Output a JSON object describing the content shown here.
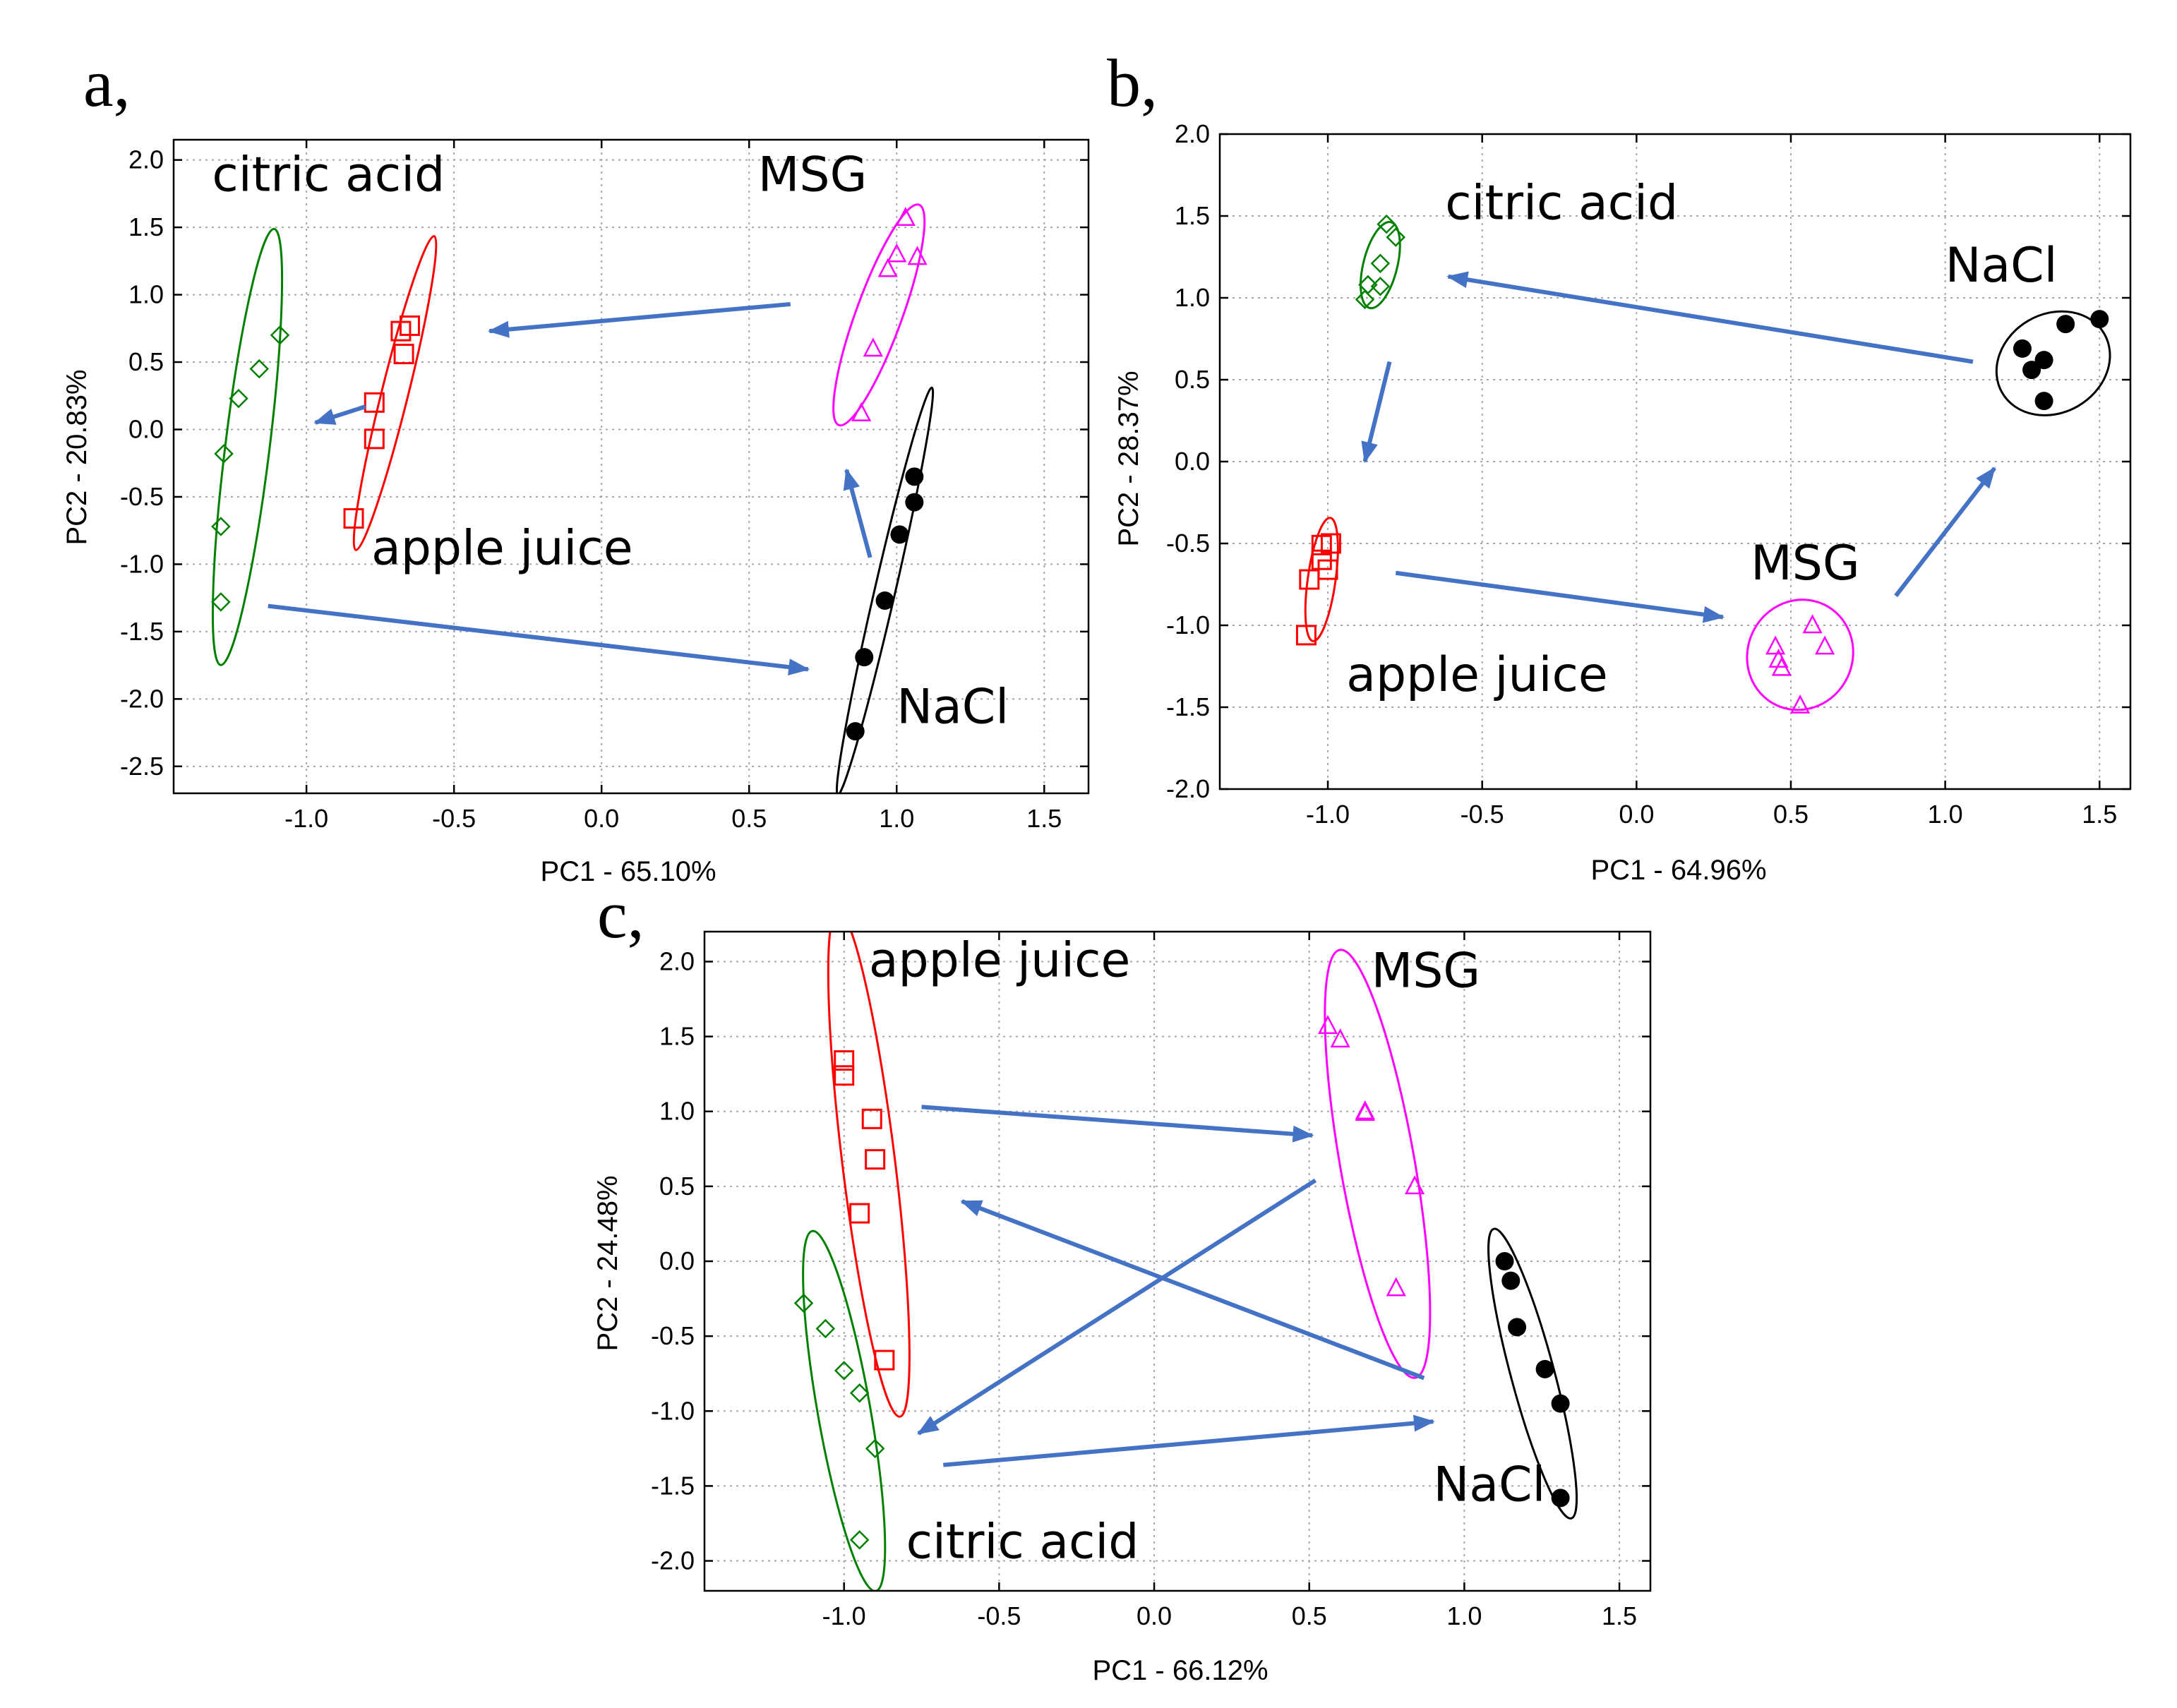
{
  "colors": {
    "citric acid": "#008000",
    "apple juice": "#ff0000",
    "MSG": "#ff00ff",
    "NaCl": "#000000",
    "arrow": "#4472c4"
  },
  "chart_data": [
    {
      "type": "scatter",
      "panel": "a,",
      "xlabel": "PC1 - 65.10%",
      "ylabel": "PC2 - 20.83%",
      "xlim": [
        -1.45,
        1.65
      ],
      "ylim": [
        -2.7,
        2.15
      ],
      "xticks": [
        -1.0,
        -0.5,
        0.0,
        0.5,
        1.0,
        1.5
      ],
      "xtick_labels": [
        "-1.0",
        "-0.5",
        "0.0",
        "0.5",
        "1.0",
        "1.5"
      ],
      "yticks": [
        2.0,
        1.5,
        1.0,
        0.5,
        0.0,
        -0.5,
        -1.0,
        -1.5,
        -2.0,
        -2.5
      ],
      "ytick_labels": [
        "2.0",
        "1.5",
        "1.0",
        "0.5",
        "0.0",
        "-0.5",
        "-1.0",
        "-1.5",
        "-2.0",
        "-2.5"
      ],
      "series": [
        {
          "name": "citric acid",
          "marker": "diamond",
          "points": [
            [
              -1.09,
              0.7
            ],
            [
              -1.16,
              0.45
            ],
            [
              -1.23,
              0.23
            ],
            [
              -1.28,
              -0.18
            ],
            [
              -1.29,
              -0.72
            ],
            [
              -1.29,
              -1.28
            ]
          ],
          "ellipse": {
            "center": [
              -1.2,
              -0.13
            ],
            "rx": 0.075,
            "ry": 1.63,
            "angle_deg": 7
          }
        },
        {
          "name": "apple juice",
          "marker": "square",
          "points": [
            [
              -0.65,
              0.77
            ],
            [
              -0.68,
              0.73
            ],
            [
              -0.67,
              0.56
            ],
            [
              -0.77,
              0.2
            ],
            [
              -0.77,
              -0.07
            ],
            [
              -0.84,
              -0.66
            ]
          ],
          "ellipse": {
            "center": [
              -0.7,
              0.27
            ],
            "rx": 0.045,
            "ry": 1.2,
            "angle_deg": 14
          }
        },
        {
          "name": "MSG",
          "marker": "triangle",
          "points": [
            [
              1.03,
              1.57
            ],
            [
              1.0,
              1.3
            ],
            [
              1.07,
              1.28
            ],
            [
              0.97,
              1.19
            ],
            [
              0.92,
              0.6
            ],
            [
              0.88,
              0.12
            ]
          ],
          "ellipse": {
            "center": [
              0.94,
              0.85
            ],
            "rx": 0.078,
            "ry": 0.87,
            "angle_deg": 20
          }
        },
        {
          "name": "NaCl",
          "marker": "circle",
          "points": [
            [
              1.06,
              -0.35
            ],
            [
              1.06,
              -0.54
            ],
            [
              1.01,
              -0.78
            ],
            [
              0.96,
              -1.27
            ],
            [
              0.89,
              -1.69
            ],
            [
              0.86,
              -2.24
            ]
          ],
          "ellipse": {
            "center": [
              0.96,
              -1.2
            ],
            "rx": 0.035,
            "ry": 1.55,
            "angle_deg": 13
          }
        }
      ],
      "group_labels": [
        {
          "text": "citric acid",
          "x": -1.32,
          "y": 1.77
        },
        {
          "text": "apple juice",
          "x": -0.78,
          "y": -1.0
        },
        {
          "text": "MSG",
          "x": 0.53,
          "y": 1.77
        },
        {
          "text": "NaCl",
          "x": 1.0,
          "y": -2.18
        }
      ],
      "arrows": [
        {
          "from": [
            0.64,
            0.93
          ],
          "to": [
            -0.38,
            0.73
          ]
        },
        {
          "from": [
            -0.8,
            0.17
          ],
          "to": [
            -0.97,
            0.05
          ]
        },
        {
          "from": [
            -1.13,
            -1.31
          ],
          "to": [
            0.7,
            -1.78
          ]
        },
        {
          "from": [
            0.91,
            -0.95
          ],
          "to": [
            0.83,
            -0.3
          ]
        }
      ]
    },
    {
      "type": "scatter",
      "panel": "b,",
      "xlabel": "PC1 - 64.96%",
      "ylabel": "PC2 - 28.37%",
      "xlim": [
        -1.35,
        1.6
      ],
      "ylim": [
        -2.0,
        2.0
      ],
      "xticks": [
        -1.0,
        -0.5,
        0.0,
        0.5,
        1.0,
        1.5
      ],
      "xtick_labels": [
        "-1.0",
        "-0.5",
        "0.0",
        "0.5",
        "1.0",
        "1.5"
      ],
      "yticks": [
        2.0,
        1.5,
        1.0,
        0.5,
        0.0,
        -0.5,
        -1.0,
        -1.5,
        -2.0
      ],
      "ytick_labels": [
        "2.0",
        "1.5",
        "1.0",
        "0.5",
        "0.0",
        "-0.5",
        "-1.0",
        "-1.5",
        "-2.0"
      ],
      "series": [
        {
          "name": "citric acid",
          "marker": "diamond",
          "points": [
            [
              -0.81,
              1.45
            ],
            [
              -0.78,
              1.37
            ],
            [
              -0.83,
              1.21
            ],
            [
              -0.83,
              1.07
            ],
            [
              -0.87,
              1.08
            ],
            [
              -0.88,
              0.99
            ]
          ],
          "ellipse": {
            "center": [
              -0.83,
              1.2
            ],
            "rx": 0.055,
            "ry": 0.27,
            "angle_deg": 14
          }
        },
        {
          "name": "apple juice",
          "marker": "square",
          "points": [
            [
              -0.99,
              -0.5
            ],
            [
              -1.02,
              -0.51
            ],
            [
              -1.02,
              -0.6
            ],
            [
              -1.0,
              -0.66
            ],
            [
              -1.06,
              -0.72
            ],
            [
              -1.07,
              -1.06
            ]
          ],
          "ellipse": {
            "center": [
              -1.02,
              -0.72
            ],
            "rx": 0.045,
            "ry": 0.38,
            "angle_deg": 8
          }
        },
        {
          "name": "MSG",
          "marker": "triangle",
          "points": [
            [
              0.45,
              -1.13
            ],
            [
              0.46,
              -1.21
            ],
            [
              0.47,
              -1.26
            ],
            [
              0.57,
              -1.0
            ],
            [
              0.61,
              -1.13
            ],
            [
              0.53,
              -1.49
            ]
          ],
          "ellipse": {
            "center": [
              0.53,
              -1.18
            ],
            "rx": 0.17,
            "ry": 0.34,
            "angle_deg": 25
          }
        },
        {
          "name": "NaCl",
          "marker": "circle",
          "points": [
            [
              1.25,
              0.69
            ],
            [
              1.28,
              0.56
            ],
            [
              1.32,
              0.62
            ],
            [
              1.39,
              0.84
            ],
            [
              1.5,
              0.87
            ],
            [
              1.32,
              0.37
            ]
          ],
          "ellipse": {
            "center": [
              1.35,
              0.6
            ],
            "rx": 0.16,
            "ry": 0.36,
            "angle_deg": 60
          }
        }
      ],
      "group_labels": [
        {
          "text": "citric acid",
          "x": -0.62,
          "y": 1.48
        },
        {
          "text": "NaCl",
          "x": 1.0,
          "y": 1.1
        },
        {
          "text": "MSG",
          "x": 0.37,
          "y": -0.72
        },
        {
          "text": "apple juice",
          "x": -0.94,
          "y": -1.4
        }
      ],
      "arrows": [
        {
          "from": [
            1.09,
            0.61
          ],
          "to": [
            -0.61,
            1.13
          ]
        },
        {
          "from": [
            -0.8,
            0.61
          ],
          "to": [
            -0.88,
            0.0
          ]
        },
        {
          "from": [
            -0.78,
            -0.68
          ],
          "to": [
            0.28,
            -0.95
          ]
        },
        {
          "from": [
            0.84,
            -0.82
          ],
          "to": [
            1.16,
            -0.04
          ]
        }
      ]
    },
    {
      "type": "scatter",
      "panel": "c,",
      "xlabel": "PC1 - 66.12%",
      "ylabel": "PC2 - 24.48%",
      "xlim": [
        -1.45,
        1.6
      ],
      "ylim": [
        -2.2,
        2.2
      ],
      "xticks": [
        -1.0,
        -0.5,
        0.0,
        0.5,
        1.0,
        1.5
      ],
      "xtick_labels": [
        "-1.0",
        "-0.5",
        "0.0",
        "0.5",
        "1.0",
        "1.5"
      ],
      "yticks": [
        2.0,
        1.5,
        1.0,
        0.5,
        0.0,
        -0.5,
        -1.0,
        -1.5,
        -2.0
      ],
      "ytick_labels": [
        "2.0",
        "1.5",
        "1.0",
        "0.5",
        "0.0",
        "-0.5",
        "-1.0",
        "-1.5",
        "-2.0"
      ],
      "series": [
        {
          "name": "apple juice",
          "marker": "square",
          "points": [
            [
              -1.0,
              1.34
            ],
            [
              -1.0,
              1.24
            ],
            [
              -0.91,
              0.95
            ],
            [
              -0.9,
              0.68
            ],
            [
              -0.95,
              0.32
            ],
            [
              -0.87,
              -0.66
            ]
          ],
          "ellipse": {
            "center": [
              -0.92,
              0.65
            ],
            "rx": 0.085,
            "ry": 1.7,
            "angle_deg": -7
          }
        },
        {
          "name": "MSG",
          "marker": "triangle",
          "points": [
            [
              0.56,
              1.57
            ],
            [
              0.6,
              1.48
            ],
            [
              0.68,
              0.99
            ],
            [
              0.68,
              1.0
            ],
            [
              0.84,
              0.5
            ],
            [
              0.78,
              -0.18
            ]
          ],
          "ellipse": {
            "center": [
              0.72,
              0.65
            ],
            "rx": 0.12,
            "ry": 1.45,
            "angle_deg": -10
          }
        },
        {
          "name": "citric acid",
          "marker": "diamond",
          "points": [
            [
              -1.13,
              -0.28
            ],
            [
              -1.06,
              -0.45
            ],
            [
              -1.0,
              -0.73
            ],
            [
              -0.95,
              -0.88
            ],
            [
              -0.9,
              -1.25
            ],
            [
              -0.95,
              -1.86
            ]
          ],
          "ellipse": {
            "center": [
              -1.0,
              -1.0
            ],
            "rx": 0.085,
            "ry": 1.22,
            "angle_deg": -10
          }
        },
        {
          "name": "NaCl",
          "marker": "circle",
          "points": [
            [
              1.13,
              0.0
            ],
            [
              1.15,
              -0.13
            ],
            [
              1.17,
              -0.44
            ],
            [
              1.26,
              -0.72
            ],
            [
              1.31,
              -0.95
            ],
            [
              1.31,
              -1.58
            ]
          ],
          "ellipse": {
            "center": [
              1.22,
              -0.75
            ],
            "rx": 0.07,
            "ry": 1.0,
            "angle_deg": -15
          }
        }
      ],
      "group_labels": [
        {
          "text": "apple juice",
          "x": -0.92,
          "y": 1.9
        },
        {
          "text": "MSG",
          "x": 0.7,
          "y": 1.83
        },
        {
          "text": "citric acid",
          "x": -0.8,
          "y": -1.98
        },
        {
          "text": "NaCl",
          "x": 0.9,
          "y": -1.6
        }
      ],
      "arrows": [
        {
          "from": [
            -0.75,
            1.03
          ],
          "to": [
            0.51,
            0.84
          ]
        },
        {
          "from": [
            0.52,
            0.54
          ],
          "to": [
            -0.76,
            -1.15
          ]
        },
        {
          "from": [
            0.87,
            -0.78
          ],
          "to": [
            -0.62,
            0.4
          ]
        },
        {
          "from": [
            -0.68,
            -1.36
          ],
          "to": [
            0.9,
            -1.07
          ]
        }
      ]
    }
  ]
}
